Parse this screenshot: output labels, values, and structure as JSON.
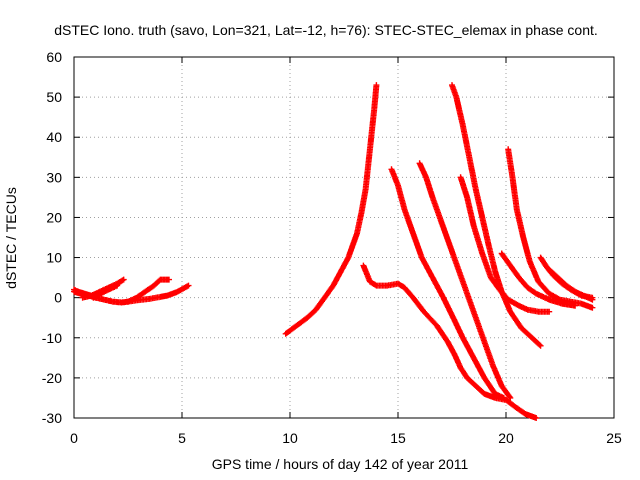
{
  "chart_data": {
    "type": "scatter",
    "title": "dSTEC Iono. truth (savo, Lon=321, Lat=-12, h=76): STEC-STEC_elemax in phase cont.",
    "xlabel": "GPS time / hours of day 142 of year 2011",
    "ylabel": "dSTEC  / TECUs",
    "xlim": [
      0,
      25
    ],
    "ylim": [
      -30,
      60
    ],
    "xticks": [
      0,
      5,
      10,
      15,
      20,
      25
    ],
    "yticks": [
      -30,
      -20,
      -10,
      0,
      10,
      20,
      30,
      40,
      50,
      60
    ],
    "grid": true,
    "marker": "plus",
    "color": "#ff0000",
    "series": [
      {
        "x": [
          0.0,
          0.3,
          0.7,
          1.0,
          1.4,
          1.8,
          2.2,
          2.5,
          3.0,
          3.5,
          4.0,
          4.3,
          4.8,
          5.3
        ],
        "y": [
          1.5,
          1.0,
          0.5,
          0.0,
          -0.5,
          -1.0,
          -1.2,
          -1.0,
          -0.6,
          -0.3,
          0.2,
          0.5,
          1.5,
          3.0
        ]
      },
      {
        "x": [
          0.0,
          0.2,
          0.5,
          0.8,
          1.1,
          1.4
        ],
        "y": [
          2.0,
          1.5,
          1.0,
          0.5,
          0.8,
          1.5
        ]
      },
      {
        "x": [
          0.4,
          0.8,
          1.2,
          1.6,
          2.0,
          2.3
        ],
        "y": [
          0.0,
          0.5,
          1.5,
          2.5,
          3.5,
          4.5
        ]
      },
      {
        "x": [
          0.9,
          1.2,
          1.6,
          2.0
        ],
        "y": [
          0.0,
          1.0,
          2.0,
          3.0
        ]
      },
      {
        "x": [
          2.5,
          2.9,
          3.3,
          3.7,
          4.0,
          4.4
        ],
        "y": [
          -1.0,
          0.0,
          1.5,
          3.0,
          4.5,
          4.5
        ]
      },
      {
        "x": [
          9.8,
          10.3,
          10.8,
          11.2,
          11.6,
          12.0,
          12.4,
          12.7,
          12.9,
          13.1,
          13.3,
          13.5,
          13.6,
          13.7,
          13.8,
          13.9,
          14.0
        ],
        "y": [
          -9.0,
          -7.0,
          -5.0,
          -3.0,
          0.0,
          3.0,
          7.0,
          10.0,
          13.0,
          16.0,
          21.0,
          27.0,
          32.0,
          37.0,
          42.0,
          47.0,
          53.0
        ]
      },
      {
        "x": [
          13.4,
          13.7,
          14.0,
          14.5,
          15.0,
          15.3,
          15.7,
          16.2,
          16.8,
          17.3,
          17.6,
          17.9,
          18.2,
          18.6,
          19.0,
          19.5,
          20.0,
          20.5,
          20.9,
          21.4
        ],
        "y": [
          8.0,
          4.0,
          3.0,
          3.0,
          3.5,
          2.5,
          0.0,
          -3.5,
          -7.0,
          -11.0,
          -14.0,
          -17.5,
          -20.0,
          -22.0,
          -24.0,
          -25.0,
          -25.5,
          -27.5,
          -29.0,
          -30.0
        ]
      },
      {
        "x": [
          14.7,
          15.0,
          15.3,
          15.7,
          16.1,
          16.6,
          17.1,
          17.6,
          18.0,
          18.5,
          19.0,
          19.5,
          19.9
        ],
        "y": [
          32.0,
          28.0,
          22.0,
          16.0,
          10.0,
          5.0,
          0.0,
          -5.5,
          -10.0,
          -15.0,
          -20.0,
          -24.0,
          -25.0
        ]
      },
      {
        "x": [
          16.0,
          16.3,
          16.6,
          17.0,
          17.4,
          17.8,
          18.2,
          18.6,
          19.0,
          19.4,
          19.8,
          20.2
        ],
        "y": [
          33.5,
          30.0,
          25.0,
          19.0,
          13.0,
          7.0,
          1.0,
          -5.0,
          -11.0,
          -17.0,
          -22.0,
          -25.0
        ]
      },
      {
        "x": [
          17.5,
          17.7,
          18.0,
          18.3,
          18.6,
          18.9,
          19.2,
          19.5,
          19.8,
          20.2,
          20.7,
          21.2,
          21.6
        ],
        "y": [
          53.0,
          50.0,
          43.0,
          35.0,
          27.0,
          20.0,
          13.0,
          6.5,
          1.5,
          -3.5,
          -7.5,
          -10.0,
          -12.0
        ]
      },
      {
        "x": [
          17.9,
          18.2,
          18.5,
          18.9,
          19.3,
          19.7,
          20.1,
          20.6,
          21.0,
          21.5,
          22.0
        ],
        "y": [
          30.0,
          25.0,
          18.0,
          11.0,
          5.0,
          2.0,
          -0.5,
          -2.0,
          -3.0,
          -3.5,
          -3.5
        ]
      },
      {
        "x": [
          20.1,
          20.3,
          20.5,
          20.8,
          21.1,
          21.5,
          22.0,
          22.5,
          23.0,
          23.5,
          24.0
        ],
        "y": [
          37.0,
          30.0,
          22.0,
          15.0,
          9.0,
          4.0,
          1.0,
          -0.5,
          -1.0,
          -1.5,
          -2.5
        ]
      },
      {
        "x": [
          19.8,
          20.2,
          20.6,
          21.0,
          21.4,
          22.0,
          22.6,
          23.2
        ],
        "y": [
          11.0,
          8.0,
          5.0,
          2.5,
          1.0,
          -0.5,
          -1.5,
          -2.0
        ]
      },
      {
        "x": [
          21.6,
          21.9,
          22.2,
          22.6,
          23.0,
          23.5,
          24.0
        ],
        "y": [
          10.0,
          7.5,
          5.5,
          3.5,
          2.0,
          0.5,
          0.0
        ]
      },
      {
        "x": [
          22.0,
          22.4,
          22.8,
          23.2,
          23.6,
          24.0
        ],
        "y": [
          7.0,
          5.0,
          3.0,
          1.5,
          0.5,
          -0.5
        ]
      }
    ]
  }
}
